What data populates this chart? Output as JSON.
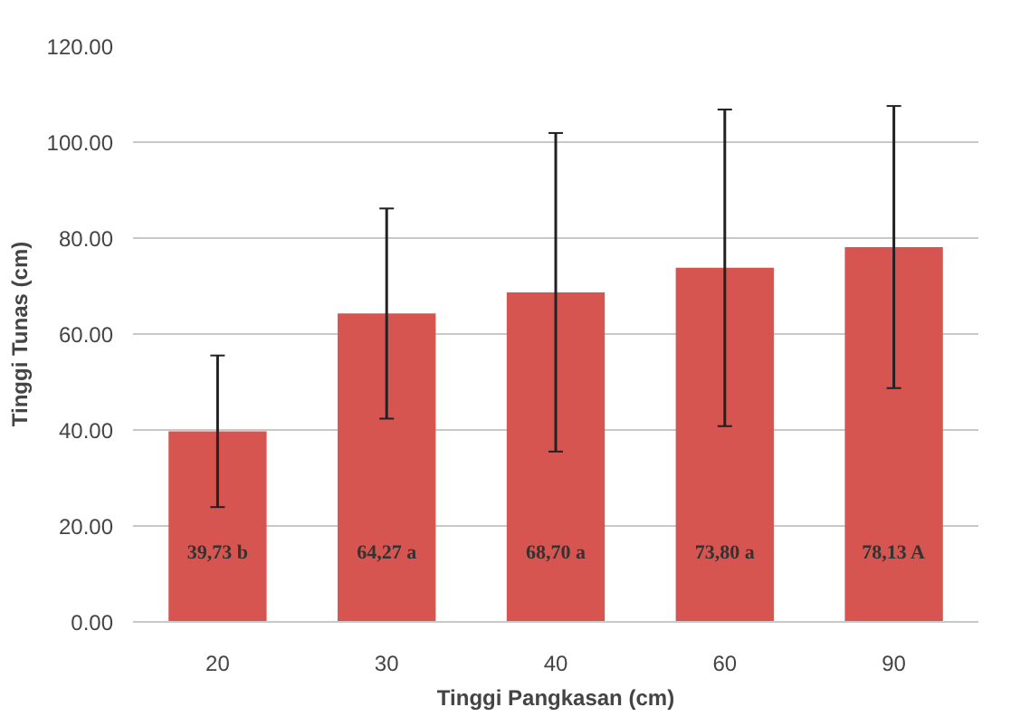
{
  "chart_data": {
    "type": "bar",
    "xlabel": "Tinggi Pangkasan (cm)",
    "ylabel": "Tinggi Tunas (cm)",
    "categories": [
      "20",
      "30",
      "40",
      "60",
      "90"
    ],
    "values": [
      39.73,
      64.27,
      68.7,
      73.8,
      78.13
    ],
    "errors": [
      15.8,
      21.9,
      33.2,
      33.0,
      29.4
    ],
    "value_labels": [
      "39,73 b",
      "64,27 a",
      "68,70 a",
      "73,80 a",
      "78,13 A"
    ],
    "color": "#d65550",
    "ylim": [
      0,
      120
    ],
    "yticks": [
      {
        "value": 0,
        "label": "0.00"
      },
      {
        "value": 20,
        "label": "20.00"
      },
      {
        "value": 40,
        "label": "40.00"
      },
      {
        "value": 60,
        "label": "60.00"
      },
      {
        "value": 80,
        "label": "80.00"
      },
      {
        "value": 100,
        "label": "100.00"
      },
      {
        "value": 120,
        "label": "120.00"
      }
    ],
    "grid": "y"
  }
}
